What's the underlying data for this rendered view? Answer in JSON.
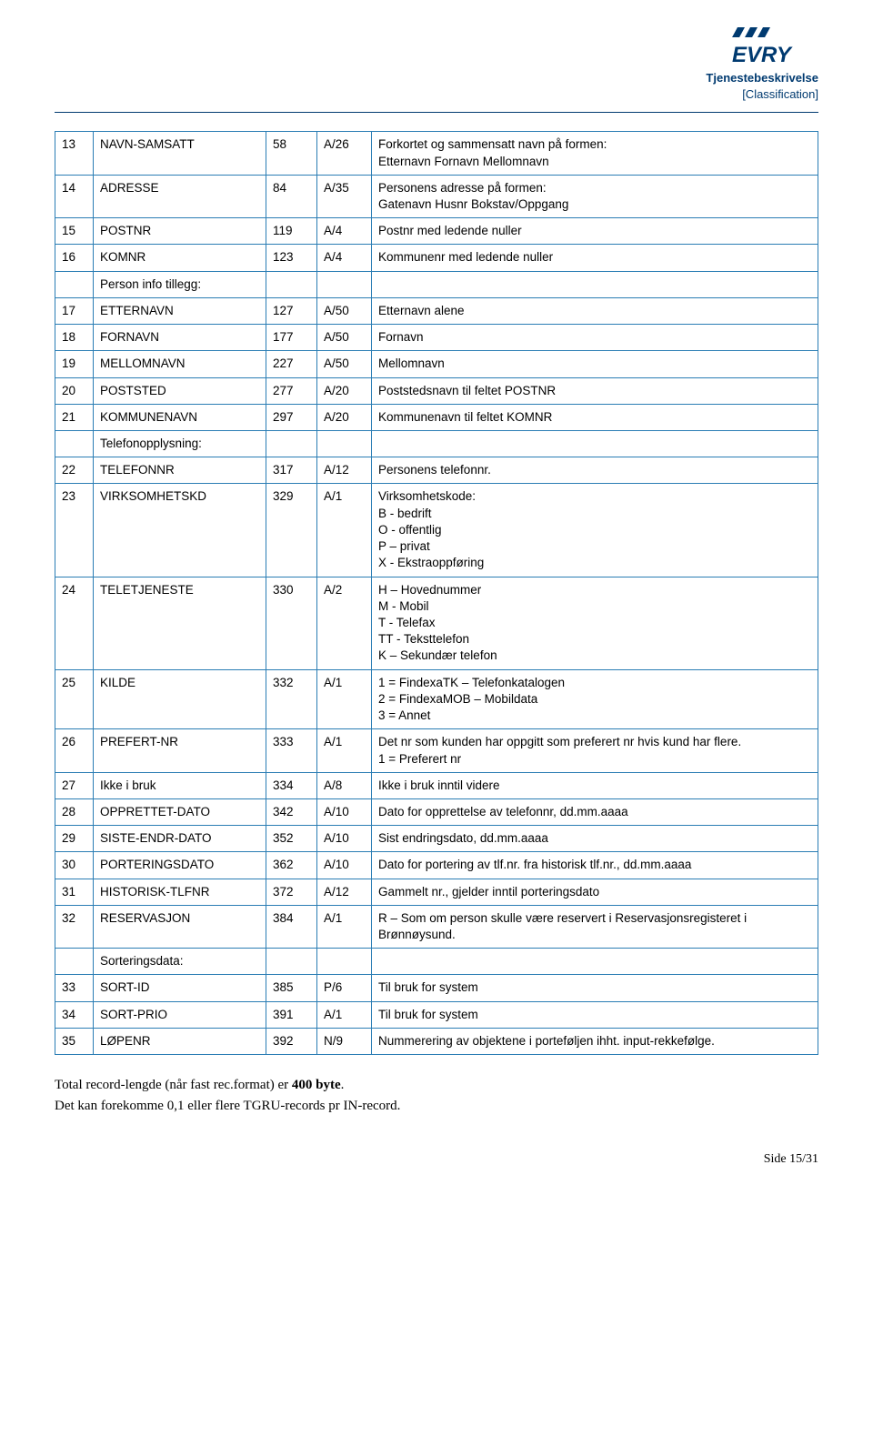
{
  "header": {
    "service_desc": "Tjenestebeskrivelse",
    "classification": "[Classification]"
  },
  "logo": {
    "bars": [
      "#003a70",
      "#003a70",
      "#003a70"
    ],
    "text": "EVRY",
    "text_color": "#003a70"
  },
  "table": {
    "border_color": "#2a7db4",
    "rows": [
      {
        "n": "13",
        "name": "NAVN-SAMSATT",
        "pos": "58",
        "fmt": "A/26",
        "desc": "Forkortet og sammensatt navn på formen:\nEtternavn Fornavn Mellomnavn"
      },
      {
        "n": "14",
        "name": "ADRESSE",
        "pos": "84",
        "fmt": "A/35",
        "desc": "Personens adresse på formen:\nGatenavn Husnr Bokstav/Oppgang"
      },
      {
        "n": "15",
        "name": "POSTNR",
        "pos": "119",
        "fmt": "A/4",
        "desc": "Postnr med ledende nuller"
      },
      {
        "n": "16",
        "name": "KOMNR",
        "pos": "123",
        "fmt": "A/4",
        "desc": "Kommunenr med ledende nuller"
      },
      {
        "n": "",
        "name": "Person info tillegg:",
        "pos": "",
        "fmt": "",
        "desc": ""
      },
      {
        "n": "17",
        "name": "ETTERNAVN",
        "pos": "127",
        "fmt": "A/50",
        "desc": "Etternavn alene"
      },
      {
        "n": "18",
        "name": "FORNAVN",
        "pos": "177",
        "fmt": "A/50",
        "desc": "Fornavn"
      },
      {
        "n": "19",
        "name": "MELLOMNAVN",
        "pos": "227",
        "fmt": "A/50",
        "desc": "Mellomnavn"
      },
      {
        "n": "20",
        "name": "POSTSTED",
        "pos": "277",
        "fmt": "A/20",
        "desc": "Poststedsnavn til feltet POSTNR"
      },
      {
        "n": "21",
        "name": "KOMMUNENAVN",
        "pos": "297",
        "fmt": "A/20",
        "desc": "Kommunenavn til feltet KOMNR"
      },
      {
        "n": "",
        "name": "Telefonopplysning:",
        "pos": "",
        "fmt": "",
        "desc": ""
      },
      {
        "n": "22",
        "name": "TELEFONNR",
        "pos": "317",
        "fmt": "A/12",
        "desc": "Personens telefonnr."
      },
      {
        "n": "23",
        "name": "VIRKSOMHETSKD",
        "pos": "329",
        "fmt": "A/1",
        "desc": "Virksomhetskode:\nB - bedrift\nO - offentlig\nP – privat\nX - Ekstraoppføring"
      },
      {
        "n": "24",
        "name": "TELETJENESTE",
        "pos": "330",
        "fmt": "A/2",
        "desc": "H – Hovednummer\nM - Mobil\nT  - Telefax\nTT - Teksttelefon\nK – Sekundær telefon"
      },
      {
        "n": "25",
        "name": "KILDE",
        "pos": "332",
        "fmt": "A/1",
        "desc": "1 = FindexaTK – Telefonkatalogen\n2 = FindexaMOB – Mobildata\n3 = Annet"
      },
      {
        "n": "26",
        "name": "PREFERT-NR",
        "pos": "333",
        "fmt": "A/1",
        "desc": "Det nr som kunden har oppgitt som preferert nr hvis kund har flere.\n1 = Preferert nr"
      },
      {
        "n": "27",
        "name": "Ikke i bruk",
        "pos": "334",
        "fmt": "A/8",
        "desc": "Ikke i bruk inntil videre"
      },
      {
        "n": "28",
        "name": "OPPRETTET-DATO",
        "pos": "342",
        "fmt": "A/10",
        "desc": "Dato for opprettelse av telefonnr, dd.mm.aaaa"
      },
      {
        "n": "29",
        "name": "SISTE-ENDR-DATO",
        "pos": "352",
        "fmt": "A/10",
        "desc": "Sist endringsdato, dd.mm.aaaa"
      },
      {
        "n": "30",
        "name": "PORTERINGSDATO",
        "pos": "362",
        "fmt": "A/10",
        "desc": "Dato for portering av tlf.nr. fra historisk tlf.nr., dd.mm.aaaa"
      },
      {
        "n": "31",
        "name": "HISTORISK-TLFNR",
        "pos": "372",
        "fmt": "A/12",
        "desc": "Gammelt nr., gjelder inntil porteringsdato"
      },
      {
        "n": "32",
        "name": "RESERVASJON",
        "pos": "384",
        "fmt": "A/1",
        "desc": "R – Som om person skulle være reservert i Reservasjonsregisteret i Brønnøysund."
      },
      {
        "n": "",
        "name": "Sorteringsdata:",
        "pos": "",
        "fmt": "",
        "desc": ""
      },
      {
        "n": "33",
        "name": "SORT-ID",
        "pos": "385",
        "fmt": "P/6",
        "desc": "Til bruk for system"
      },
      {
        "n": "34",
        "name": "SORT-PRIO",
        "pos": "391",
        "fmt": "A/1",
        "desc": "Til bruk for system"
      },
      {
        "n": "35",
        "name": "LØPENR",
        "pos": "392",
        "fmt": "N/9",
        "desc": "Nummerering av objektene i porteføljen ihht. input-rekkefølge."
      }
    ]
  },
  "footer": {
    "line1_pre": "Total record-lengde (når fast rec.format) er ",
    "line1_bold": "400 byte",
    "line1_post": ".",
    "line2": "Det kan forekomme 0,1 eller flere TGRU-records pr IN-record.",
    "page": "Side 15/31"
  }
}
